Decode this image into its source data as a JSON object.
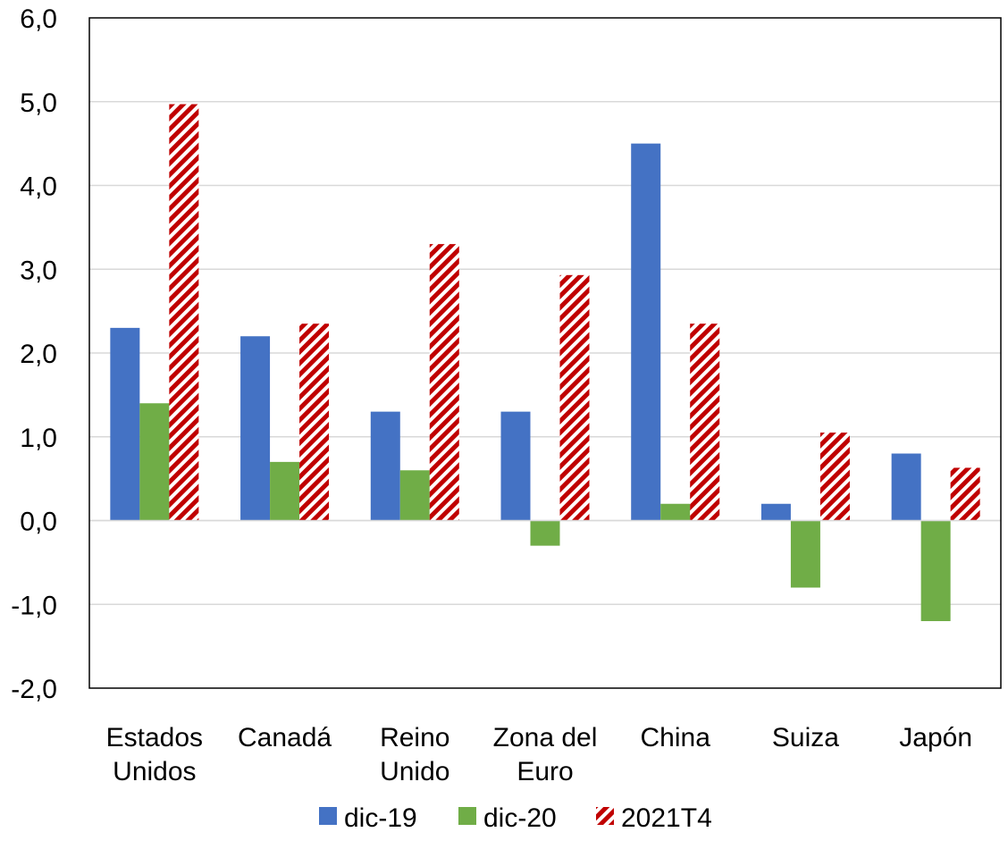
{
  "chart_data": {
    "type": "bar",
    "title": "",
    "xlabel": "",
    "ylabel": "",
    "ylim": [
      -2.0,
      6.0
    ],
    "ytick_step": 1.0,
    "ytick_labels": [
      "-2,0",
      "-1,0",
      "0,0",
      "1,0",
      "2,0",
      "3,0",
      "4,0",
      "5,0",
      "6,0"
    ],
    "grid": true,
    "legend_position": "bottom",
    "categories": [
      [
        "Estados",
        "Unidos"
      ],
      [
        "Canadá"
      ],
      [
        "Reino",
        "Unido"
      ],
      [
        "Zona del",
        "Euro"
      ],
      [
        "China"
      ],
      [
        "Suiza"
      ],
      [
        "Japón"
      ]
    ],
    "series": [
      {
        "name": "dic-19",
        "color": "#4472C4",
        "pattern": "solid",
        "values": [
          2.3,
          2.2,
          1.3,
          1.3,
          4.5,
          0.2,
          0.8
        ]
      },
      {
        "name": "dic-20",
        "color": "#70AD47",
        "pattern": "solid",
        "values": [
          1.4,
          0.7,
          0.6,
          -0.3,
          0.2,
          -0.8,
          -1.2
        ]
      },
      {
        "name": "2021T4",
        "color": "#C00000",
        "pattern": "diagonal-stripes",
        "values": [
          4.97,
          2.35,
          3.3,
          2.93,
          2.35,
          1.05,
          0.63
        ]
      }
    ]
  }
}
